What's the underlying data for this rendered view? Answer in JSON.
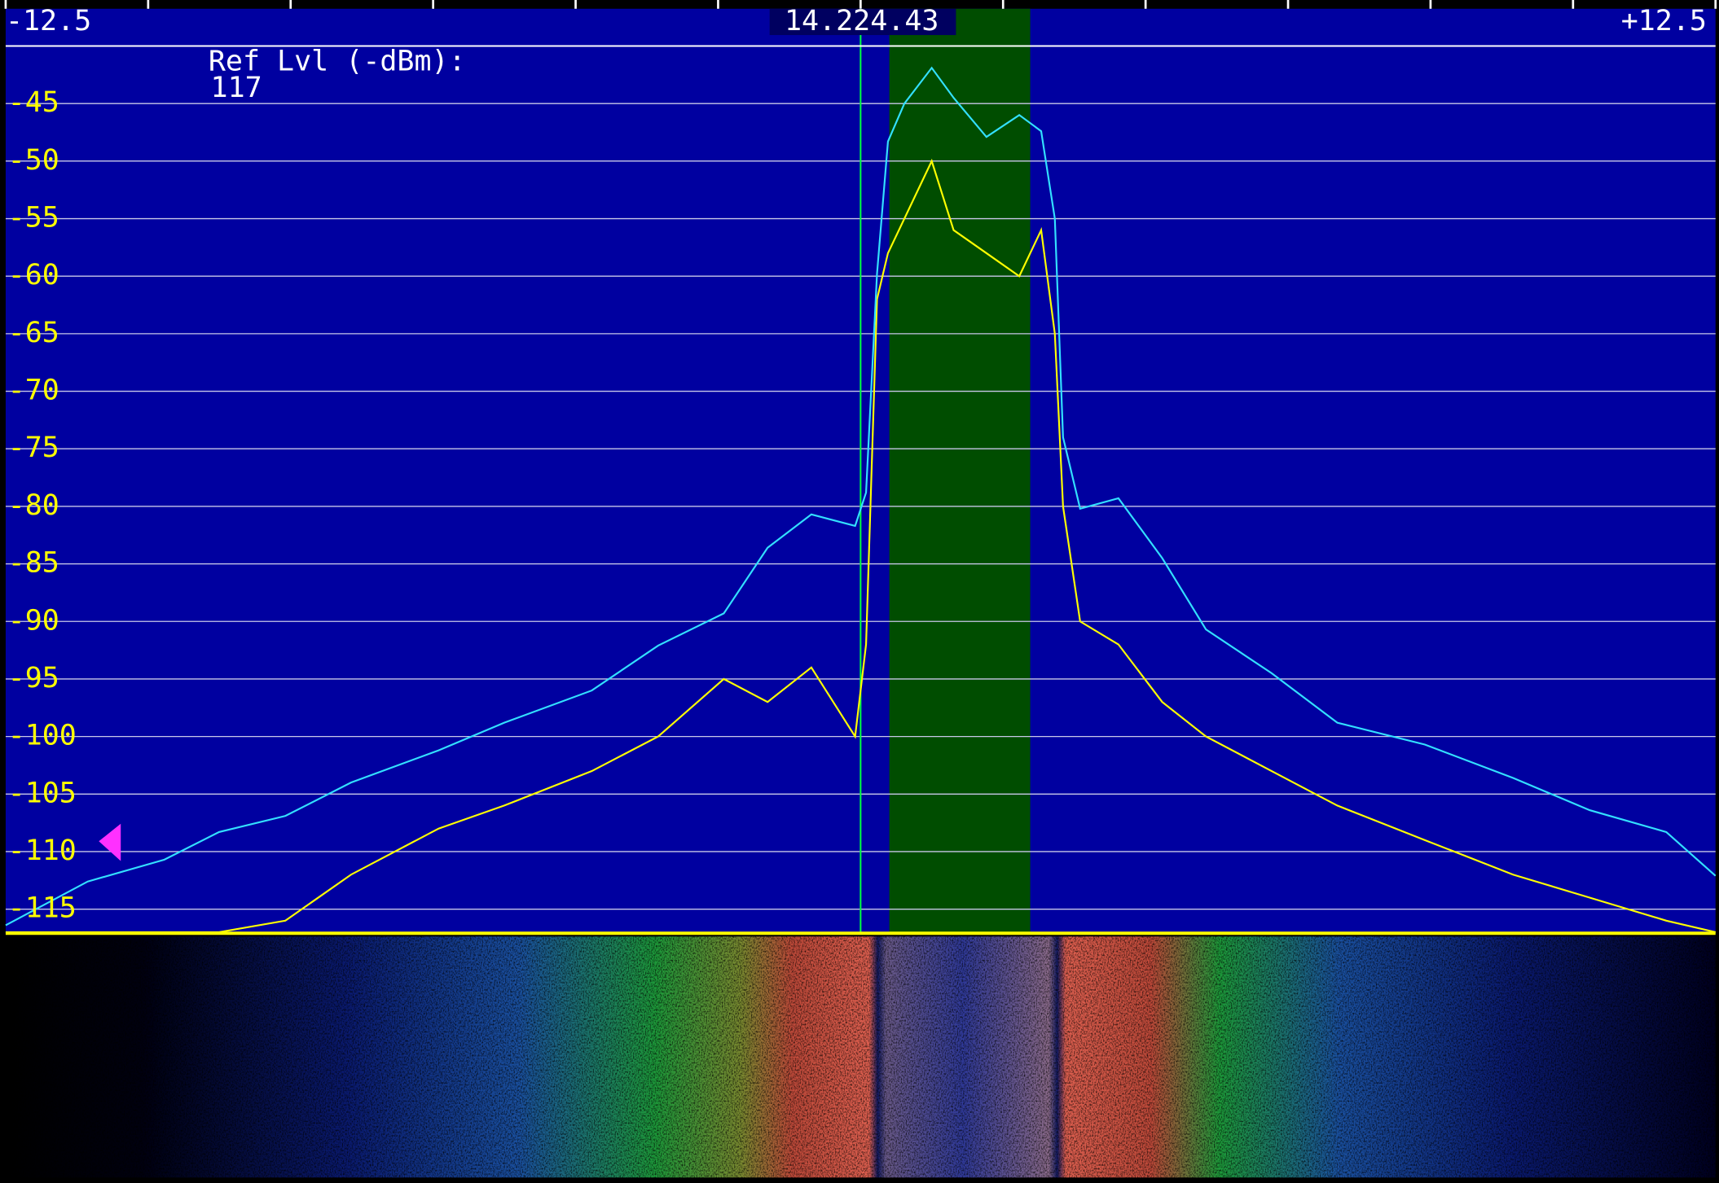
{
  "chart_data": {
    "type": "line",
    "center_label": "14.224.43",
    "ref_level": {
      "label": "Ref Lvl (-dBm):",
      "value": 117
    },
    "x": [
      -12.5,
      -11.3,
      -10.18,
      -9.38,
      -8.41,
      -7.45,
      -6.17,
      -5.21,
      -3.93,
      -2.96,
      -2.0,
      -1.36,
      -0.72,
      -0.08,
      0.08,
      0.24,
      0.4,
      0.64,
      1.04,
      1.36,
      1.84,
      2.32,
      2.64,
      2.84,
      2.96,
      3.21,
      3.77,
      4.41,
      5.05,
      6.01,
      6.97,
      8.25,
      9.54,
      10.66,
      11.78,
      12.5
    ],
    "series": [
      {
        "color": "#33e0ff",
        "values": [
          -116.4,
          -112.6,
          -110.7,
          -108.3,
          -106.9,
          -104.0,
          -101.2,
          -98.8,
          -96.0,
          -92.1,
          -89.3,
          -83.6,
          -80.7,
          -81.7,
          -78.8,
          -59.8,
          -48.3,
          -45.0,
          -41.9,
          -44.5,
          -47.9,
          -46.0,
          -47.4,
          -55.0,
          -74.0,
          -80.2,
          -79.3,
          -84.5,
          -90.7,
          -94.5,
          -98.8,
          -100.7,
          -103.6,
          -106.4,
          -108.3,
          -112.1
        ]
      },
      {
        "color": "#ffff00",
        "values": [
          -117,
          -117,
          -117,
          -117,
          -116,
          -112,
          -108,
          -106,
          -103,
          -100,
          -95,
          -97,
          -94,
          -100,
          -92,
          -62,
          -58,
          -55,
          -50,
          -56,
          -58,
          -60,
          -56,
          -65,
          -80,
          -90,
          -92,
          -97,
          -100,
          -103,
          -106,
          -109,
          -112,
          -114,
          -116,
          -117
        ]
      }
    ],
    "passband": [
      0.42,
      2.48
    ],
    "passband_color": "#004d00",
    "marker": 0,
    "xlim": [
      -12.5,
      12.5
    ],
    "xticks": [
      -12.5,
      {
        "value": 12.5,
        "label": "+12.5"
      }
    ],
    "ylim": [
      -117,
      -40
    ],
    "yticks": [
      -45,
      -50,
      -55,
      -60,
      -65,
      -70,
      -75,
      -80,
      -85,
      -90,
      -95,
      -100,
      -105,
      -110,
      -115
    ],
    "grid": true,
    "background": "#0000a0"
  }
}
